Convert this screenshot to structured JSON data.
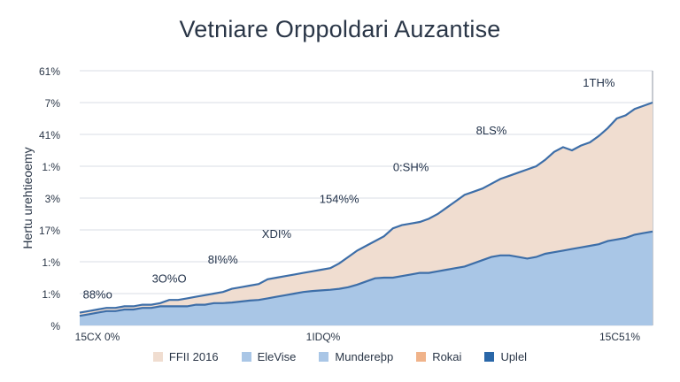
{
  "chart_data": {
    "type": "area",
    "title": "Vetniare Orppoldari Auzantise",
    "ylabel": "Hertu urehtieoemy",
    "ytick_labels": [
      "%",
      "1:%",
      "1:%",
      "17%",
      "3%",
      "1:%",
      "41%",
      "7%",
      "61%"
    ],
    "xtick_labels": [
      "15CX 0%",
      "1IDQ%",
      "15C51%"
    ],
    "x": [
      0,
      1,
      2,
      3,
      4,
      5,
      6,
      7,
      8,
      9,
      10,
      11,
      12,
      13,
      14,
      15,
      16,
      17,
      18,
      19,
      20,
      21,
      22,
      23,
      24,
      25,
      26,
      27,
      28,
      29,
      30,
      31,
      32,
      33,
      34,
      35,
      36,
      37,
      38,
      39,
      40,
      41,
      42,
      43,
      44,
      45,
      46,
      47,
      48,
      49,
      50,
      51,
      52,
      53,
      54,
      55,
      56,
      57,
      58,
      59,
      60,
      61,
      62,
      63,
      64
    ],
    "ylim": [
      0,
      8
    ],
    "series": [
      {
        "name": "",
        "color": "#a9c6e6",
        "values": [
          0.3,
          0.35,
          0.4,
          0.45,
          0.45,
          0.5,
          0.5,
          0.55,
          0.55,
          0.6,
          0.6,
          0.6,
          0.6,
          0.65,
          0.65,
          0.7,
          0.7,
          0.72,
          0.75,
          0.78,
          0.8,
          0.85,
          0.9,
          0.95,
          1.0,
          1.05,
          1.08,
          1.1,
          1.12,
          1.15,
          1.2,
          1.28,
          1.38,
          1.48,
          1.5,
          1.5,
          1.55,
          1.6,
          1.65,
          1.65,
          1.7,
          1.75,
          1.8,
          1.85,
          1.95,
          2.05,
          2.15,
          2.2,
          2.2,
          2.15,
          2.1,
          2.15,
          2.25,
          2.3,
          2.35,
          2.4,
          2.45,
          2.5,
          2.55,
          2.65,
          2.7,
          2.75,
          2.85,
          2.9,
          2.95
        ]
      },
      {
        "name": "",
        "color": "#f0ddd0",
        "values": [
          0.4,
          0.45,
          0.5,
          0.55,
          0.55,
          0.6,
          0.6,
          0.65,
          0.65,
          0.7,
          0.8,
          0.8,
          0.85,
          0.9,
          0.95,
          1.0,
          1.05,
          1.15,
          1.2,
          1.25,
          1.3,
          1.45,
          1.5,
          1.55,
          1.6,
          1.65,
          1.7,
          1.75,
          1.8,
          1.95,
          2.15,
          2.35,
          2.5,
          2.65,
          2.8,
          3.05,
          3.15,
          3.2,
          3.25,
          3.35,
          3.5,
          3.7,
          3.9,
          4.1,
          4.2,
          4.3,
          4.45,
          4.6,
          4.7,
          4.8,
          4.9,
          5.0,
          5.2,
          5.45,
          5.6,
          5.5,
          5.65,
          5.75,
          5.95,
          6.2,
          6.5,
          6.6,
          6.8,
          6.9,
          7.0
        ]
      }
    ],
    "data_labels": [
      {
        "text": "88%o",
        "x": 2,
        "y": 0.85
      },
      {
        "text": "3O%O",
        "x": 10,
        "y": 1.35
      },
      {
        "text": "8I%%",
        "x": 16,
        "y": 1.95
      },
      {
        "text": "XDI%",
        "x": 22,
        "y": 2.75
      },
      {
        "text": "154%%",
        "x": 29,
        "y": 3.85
      },
      {
        "text": "0:SH%",
        "x": 37,
        "y": 4.85
      },
      {
        "text": "8LS%",
        "x": 46,
        "y": 6.0
      },
      {
        "text": "1TH%",
        "x": 58,
        "y": 7.5
      }
    ],
    "legend": {
      "placement": "bottom",
      "items": [
        {
          "label": "FFII 2016",
          "color": "#f0ddd0"
        },
        {
          "label": "EleVise",
          "color": "#a9c6e6"
        },
        {
          "label": "Mundereþp",
          "color": "#a9c6e6"
        },
        {
          "label": "Rokai",
          "color": "#f0b38a"
        },
        {
          "label": "Uplel",
          "color": "#2a67a8"
        }
      ]
    },
    "grid": {
      "horizontal": true,
      "vertical": false
    },
    "line_color": "#3d6ea8",
    "grid_color": "#d9dee5",
    "axis_color": "#8c95a0"
  }
}
